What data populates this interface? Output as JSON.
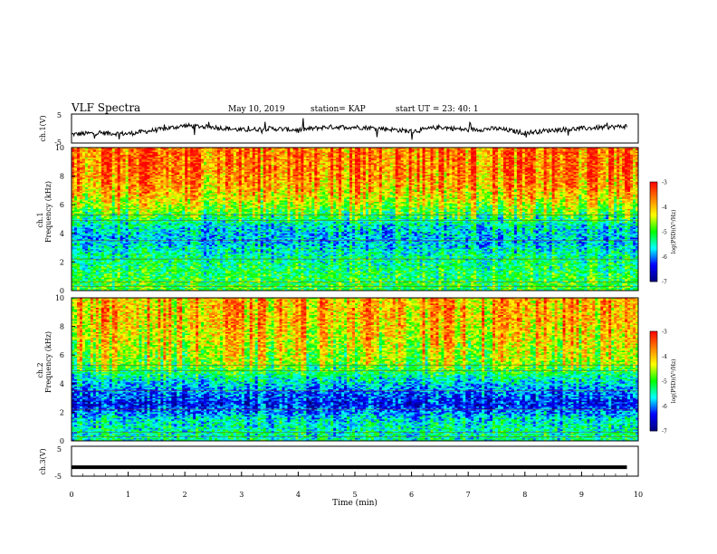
{
  "header": {
    "title": "VLF Spectra",
    "date": "May 10, 2019",
    "station": "station= KAP",
    "start": "start  UT  =   23: 40: 1"
  },
  "axes": {
    "ch1_wave_label": "ch.1(V)",
    "ch1_spec_label": "ch.1",
    "ch2_spec_label": "ch.2",
    "freq_label": "Frequency (kHz)",
    "ch3_wave_label": "ch.3(V)",
    "time_label": "Time (min)",
    "colorbar_label": "log(PSD)(V²/Hz)",
    "wave_ticks": [
      "5",
      "-5"
    ],
    "freq_ticks": [
      "0",
      "2",
      "4",
      "6",
      "8",
      "10"
    ],
    "time_ticks": [
      "0",
      "1",
      "2",
      "3",
      "4",
      "5",
      "6",
      "7",
      "8",
      "9",
      "10"
    ],
    "colorbar_ticks": [
      "-3",
      "-4",
      "-5",
      "-6",
      "-7"
    ]
  },
  "chart_data": [
    {
      "type": "line",
      "name": "ch.1 waveform",
      "xlabel": "Time (min)",
      "ylabel": "ch.1(V)",
      "xlim": [
        0,
        10
      ],
      "ylim": [
        -5,
        5
      ],
      "x": [
        0,
        0.5,
        1,
        1.5,
        2,
        2.5,
        3,
        3.5,
        4,
        4.5,
        5,
        5.5,
        6,
        6.5,
        7,
        7.5,
        8,
        8.5,
        9,
        9.5,
        9.8
      ],
      "y": [
        -2.0,
        -1.5,
        -1.8,
        -0.5,
        1.0,
        0.5,
        -0.5,
        0.0,
        -0.5,
        0.5,
        0.5,
        0.0,
        -1.0,
        0.5,
        -0.5,
        0.0,
        -1.5,
        -0.5,
        0.0,
        0.5,
        0.8
      ],
      "color": "#000000"
    },
    {
      "type": "heatmap",
      "name": "ch.1 spectrogram",
      "xlabel": "Time (min)",
      "ylabel": "Frequency (kHz)",
      "xlim": [
        0,
        10
      ],
      "ylim": [
        0,
        10
      ],
      "zlim": [
        -7,
        -3
      ],
      "zlabel": "log(PSD)(V²/Hz)",
      "freq_kHz": [
        0.5,
        1.5,
        2.5,
        3.5,
        4.5,
        5.5,
        6.5,
        7.5,
        8.5,
        9.5
      ],
      "mean_log_psd": [
        -5.0,
        -5.2,
        -5.4,
        -5.8,
        -5.6,
        -4.8,
        -4.2,
        -3.8,
        -3.6,
        -3.6
      ],
      "colormap": [
        "#00007f",
        "#0000ff",
        "#00ffff",
        "#00ff00",
        "#ffff00",
        "#ff7f00",
        "#ff0000",
        "#ffffff"
      ]
    },
    {
      "type": "heatmap",
      "name": "ch.2 spectrogram",
      "xlabel": "Time (min)",
      "ylabel": "Frequency (kHz)",
      "xlim": [
        0,
        10
      ],
      "ylim": [
        0,
        10
      ],
      "zlim": [
        -7,
        -3
      ],
      "zlabel": "log(PSD)(V²/Hz)",
      "freq_kHz": [
        0.5,
        1.5,
        2.5,
        3.5,
        4.5,
        5.5,
        6.5,
        7.5,
        8.5,
        9.5
      ],
      "mean_log_psd": [
        -5.4,
        -5.6,
        -6.4,
        -6.0,
        -5.4,
        -4.6,
        -4.4,
        -4.2,
        -4.0,
        -4.0
      ],
      "colormap": [
        "#00007f",
        "#0000ff",
        "#00ffff",
        "#00ff00",
        "#ffff00",
        "#ff7f00",
        "#ff0000",
        "#ffffff"
      ]
    },
    {
      "type": "line",
      "name": "ch.3 waveform",
      "xlabel": "Time (min)",
      "ylabel": "ch.3(V)",
      "xlim": [
        0,
        10
      ],
      "ylim": [
        -5,
        5
      ],
      "x": [
        0,
        9.8
      ],
      "y": [
        -2,
        -2
      ],
      "color": "#000000"
    }
  ]
}
